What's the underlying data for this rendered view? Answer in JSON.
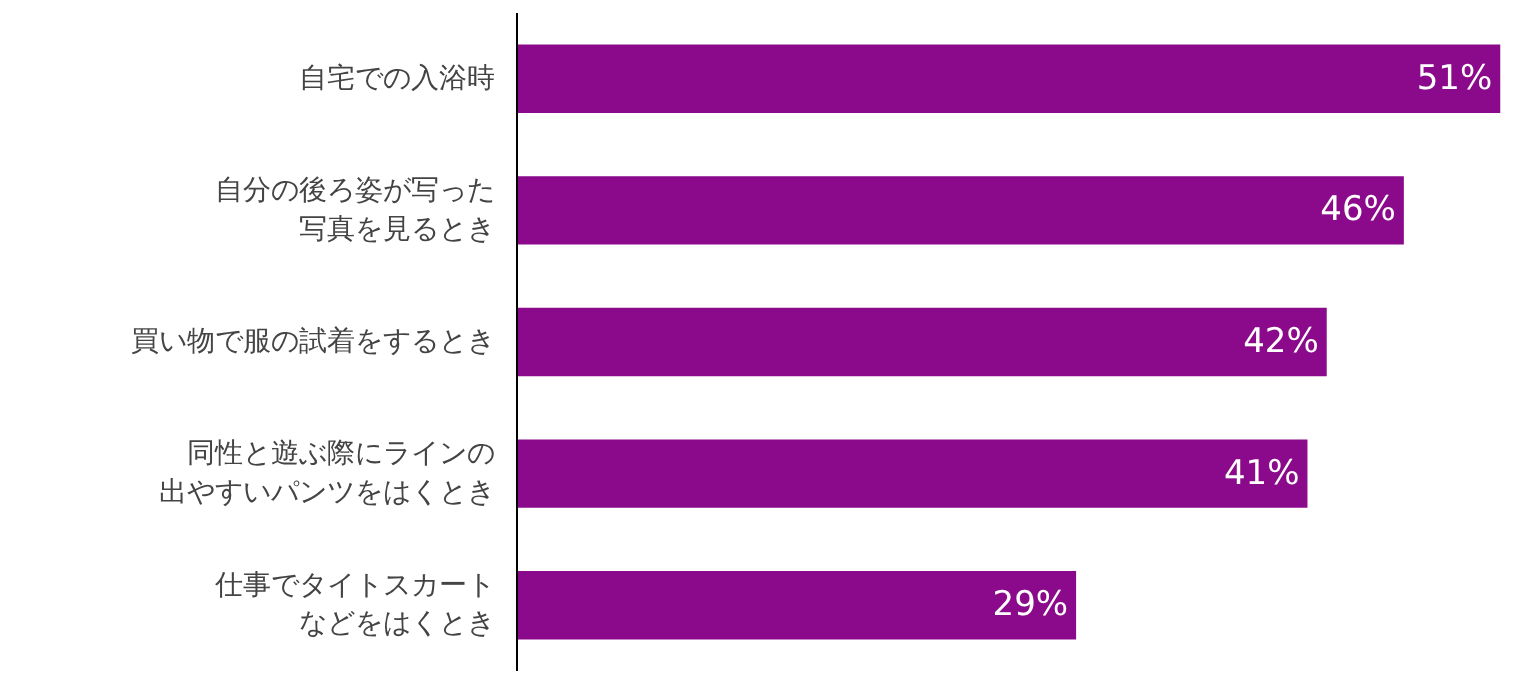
{
  "chart_data": {
    "type": "bar",
    "orientation": "horizontal",
    "categories": [
      "自宅での入浴時",
      "自分の後ろ姿が写った写真を見るとき",
      "買い物で服の試着をするとき",
      "同性と遊ぶ際にラインの出やすいパンツをはくとき",
      "仕事でタイトスカートなどをはくとき"
    ],
    "values": [
      51,
      46,
      42,
      41,
      29
    ],
    "value_labels": [
      "51%",
      "46%",
      "42%",
      "41%",
      "29%"
    ],
    "color": "#8b0a8b",
    "grid": false,
    "tick_labels": "y"
  }
}
